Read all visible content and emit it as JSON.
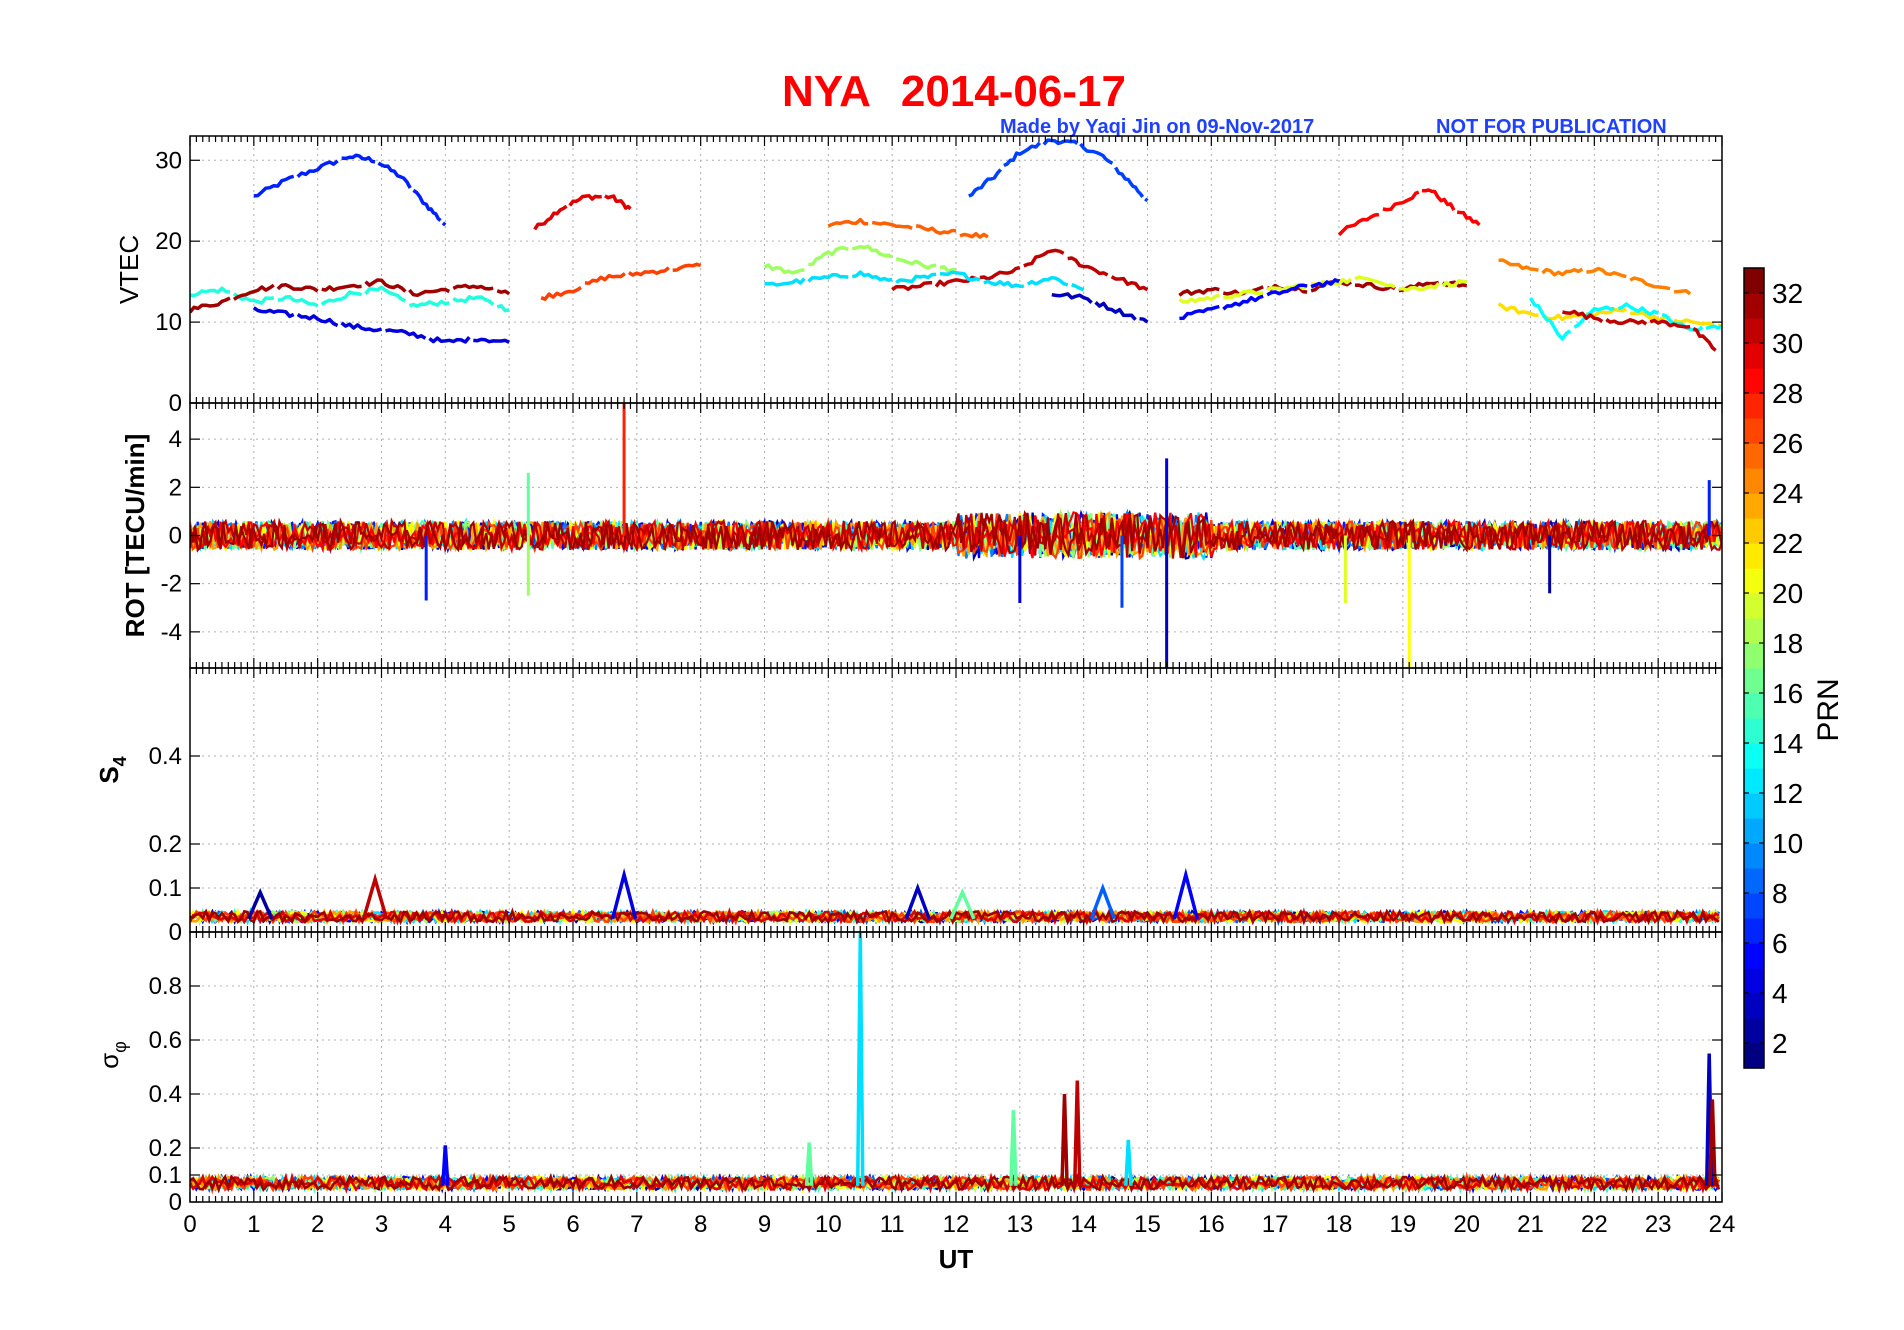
{
  "header": {
    "station": "NYA",
    "date": "2014-06-17",
    "credit": "Made by Yaqi Jin on 09-Nov-2017",
    "notice": "NOT FOR PUBLICATION"
  },
  "colors": {
    "title": "#ff0000",
    "credit": "#2040ff",
    "colormap": "jet"
  },
  "chart_data": [
    {
      "type": "line",
      "panel": "vtec",
      "ylabel": "VTEC",
      "ylim": [
        0,
        33
      ],
      "yticks": [
        0,
        10,
        20,
        30
      ],
      "xlim": [
        0,
        24
      ],
      "grid": true,
      "series": [
        {
          "prn": 6,
          "x": [
            1.0,
            1.5,
            2.0,
            2.5,
            2.9,
            3.3,
            3.7,
            4.0
          ],
          "y": [
            25.5,
            27.5,
            29.0,
            30.5,
            30.0,
            28.0,
            24.5,
            22.0
          ]
        },
        {
          "prn": 30,
          "x": [
            5.4,
            5.8,
            6.2,
            6.6,
            6.9
          ],
          "y": [
            21.5,
            24.0,
            25.5,
            25.5,
            24.0
          ]
        },
        {
          "prn": 7,
          "x": [
            12.2,
            12.6,
            13.0,
            13.5,
            13.9,
            14.3,
            14.7,
            15.0
          ],
          "y": [
            25.5,
            28.0,
            31.0,
            32.5,
            32.0,
            30.5,
            27.5,
            25.0
          ]
        },
        {
          "prn": 29,
          "x": [
            18.0,
            18.5,
            19.0,
            19.4,
            19.8,
            20.2
          ],
          "y": [
            21.0,
            23.0,
            25.0,
            26.5,
            24.0,
            22.0
          ]
        },
        {
          "prn": 26,
          "x": [
            10.0,
            10.5,
            11.0,
            11.5,
            12.0,
            12.5
          ],
          "y": [
            22.0,
            22.5,
            22.0,
            21.5,
            21.0,
            20.5
          ]
        },
        {
          "prn": 25,
          "x": [
            20.5,
            21.0,
            21.5,
            22.0,
            22.5,
            23.0,
            23.5
          ],
          "y": [
            17.5,
            16.5,
            16.0,
            16.5,
            15.5,
            14.5,
            13.5
          ]
        },
        {
          "prn": 14,
          "x": [
            0.0,
            0.5,
            1.0,
            1.5,
            2.0,
            2.5,
            3.0,
            3.5,
            4.0,
            4.5,
            5.0
          ],
          "y": [
            13.5,
            14.0,
            12.5,
            13.0,
            12.0,
            13.5,
            14.0,
            12.0,
            12.5,
            13.0,
            11.5
          ]
        },
        {
          "prn": 32,
          "x": [
            0.0,
            0.5,
            1.0,
            1.5,
            2.0,
            2.5,
            3.0,
            3.5,
            4.0,
            4.5,
            5.0
          ],
          "y": [
            11.5,
            12.5,
            14.0,
            14.5,
            14.0,
            14.5,
            15.0,
            13.5,
            14.0,
            14.5,
            13.5
          ]
        },
        {
          "prn": 4,
          "x": [
            1.0,
            1.5,
            2.0,
            2.5,
            3.0,
            3.5,
            4.0,
            4.5,
            5.0
          ],
          "y": [
            11.5,
            11.0,
            10.5,
            9.5,
            9.0,
            8.5,
            7.5,
            8.0,
            7.5
          ]
        },
        {
          "prn": 27,
          "x": [
            5.5,
            6.0,
            6.5,
            7.0,
            7.5,
            8.0
          ],
          "y": [
            13.0,
            14.0,
            15.5,
            16.0,
            16.5,
            17.0
          ]
        },
        {
          "prn": 18,
          "x": [
            9.0,
            9.5,
            10.0,
            10.5,
            11.0,
            11.5,
            12.0
          ],
          "y": [
            17.0,
            16.0,
            18.5,
            19.5,
            18.0,
            17.0,
            16.5
          ]
        },
        {
          "prn": 31,
          "x": [
            11.0,
            11.5,
            12.0,
            12.5,
            13.0,
            13.5,
            14.0,
            14.5,
            15.0
          ],
          "y": [
            14.0,
            14.5,
            15.0,
            15.5,
            16.5,
            19.0,
            17.0,
            15.5,
            14.0
          ]
        },
        {
          "prn": 12,
          "x": [
            9.0,
            9.5,
            10.0,
            10.5,
            11.0,
            11.5,
            12.0,
            12.5,
            13.0,
            13.5,
            14.0
          ],
          "y": [
            14.5,
            15.0,
            15.5,
            16.0,
            15.0,
            15.5,
            16.0,
            15.0,
            14.5,
            15.5,
            14.0
          ]
        },
        {
          "prn": 3,
          "x": [
            13.5,
            14.0,
            14.5,
            15.0
          ],
          "y": [
            13.5,
            13.0,
            11.5,
            10.0
          ]
        },
        {
          "prn": 32,
          "x": [
            15.5,
            16.0,
            16.5,
            17.0,
            17.5,
            18.0,
            18.5,
            19.0,
            19.5,
            20.0
          ],
          "y": [
            13.5,
            14.0,
            13.5,
            14.5,
            14.0,
            15.0,
            14.5,
            14.0,
            15.0,
            14.5
          ]
        },
        {
          "prn": 20,
          "x": [
            15.5,
            16.0,
            16.5,
            17.0,
            17.5,
            18.0,
            18.5,
            19.0,
            19.5,
            20.0
          ],
          "y": [
            12.5,
            13.0,
            13.5,
            14.0,
            14.5,
            15.0,
            15.5,
            14.0,
            14.5,
            15.0
          ]
        },
        {
          "prn": 5,
          "x": [
            15.5,
            16.0,
            16.5,
            17.0,
            17.5,
            18.0
          ],
          "y": [
            10.5,
            11.5,
            12.5,
            13.5,
            14.5,
            15.0
          ]
        },
        {
          "prn": 22,
          "x": [
            20.5,
            21.0,
            21.5,
            22.0,
            22.5,
            23.0,
            23.5,
            24.0
          ],
          "y": [
            12.0,
            11.0,
            10.5,
            11.0,
            11.5,
            10.5,
            10.0,
            9.5
          ]
        },
        {
          "prn": 13,
          "x": [
            21.0,
            21.5,
            22.0,
            22.5,
            23.0,
            23.5,
            24.0
          ],
          "y": [
            13.0,
            8.0,
            11.5,
            12.0,
            11.0,
            9.0,
            9.5
          ]
        },
        {
          "prn": 31,
          "x": [
            21.5,
            22.0,
            22.5,
            23.0,
            23.5,
            23.9
          ],
          "y": [
            11.5,
            10.5,
            10.0,
            10.0,
            9.5,
            6.5
          ]
        }
      ]
    },
    {
      "type": "line",
      "panel": "rot",
      "ylabel": "ROT [TECU/min]",
      "ylim": [
        -5.5,
        5.5
      ],
      "yticks": [
        -4,
        -2,
        0,
        2,
        4
      ],
      "xlim": [
        0,
        24
      ],
      "grid": true,
      "spikes": [
        {
          "prn": 28,
          "x": 6.8,
          "y": 5.5
        },
        {
          "prn": 3,
          "x": 15.3,
          "y": -5.5
        },
        {
          "prn": 4,
          "x": 15.3,
          "y": 3.2
        },
        {
          "prn": 21,
          "x": 19.1,
          "y": -5.5
        },
        {
          "prn": 6,
          "x": 3.7,
          "y": -2.7
        },
        {
          "prn": 16,
          "x": 5.3,
          "y": 2.6
        },
        {
          "prn": 18,
          "x": 5.3,
          "y": -2.5
        },
        {
          "prn": 20,
          "x": 18.1,
          "y": -2.8
        },
        {
          "prn": 4,
          "x": 13.0,
          "y": -2.8
        },
        {
          "prn": 7,
          "x": 14.6,
          "y": -3.0
        },
        {
          "prn": 2,
          "x": 21.3,
          "y": -2.4
        },
        {
          "prn": 6,
          "x": 23.8,
          "y": 2.3
        }
      ]
    },
    {
      "type": "line",
      "panel": "s4",
      "ylabel": "S4",
      "ylim": [
        0,
        0.6
      ],
      "yticks": [
        0,
        0.1,
        0.2,
        0.4
      ],
      "xlim": [
        0,
        24
      ],
      "grid": true,
      "baseline": 0.03,
      "peaks": [
        {
          "prn": 31,
          "x": 2.9,
          "y": 0.12
        },
        {
          "prn": 2,
          "x": 1.1,
          "y": 0.09
        },
        {
          "prn": 4,
          "x": 6.8,
          "y": 0.13
        },
        {
          "prn": 3,
          "x": 11.4,
          "y": 0.1
        },
        {
          "prn": 5,
          "x": 15.6,
          "y": 0.13
        },
        {
          "prn": 8,
          "x": 14.3,
          "y": 0.1
        },
        {
          "prn": 16,
          "x": 12.1,
          "y": 0.09
        }
      ]
    },
    {
      "type": "line",
      "panel": "sigma_phi",
      "ylabel": "σφ",
      "xlabel": "UT",
      "ylim": [
        0,
        1.0
      ],
      "yticks": [
        0,
        0.1,
        0.2,
        0.4,
        0.6,
        0.8
      ],
      "xlim": [
        0,
        24
      ],
      "xticks": [
        0,
        1,
        2,
        3,
        4,
        5,
        6,
        7,
        8,
        9,
        10,
        11,
        12,
        13,
        14,
        15,
        16,
        17,
        18,
        19,
        20,
        21,
        22,
        23,
        24
      ],
      "grid": true,
      "baseline": 0.06,
      "peaks": [
        {
          "prn": 12,
          "x": 10.5,
          "y": 1.0
        },
        {
          "prn": 31,
          "x": 13.9,
          "y": 0.45
        },
        {
          "prn": 32,
          "x": 13.7,
          "y": 0.4
        },
        {
          "prn": 16,
          "x": 12.9,
          "y": 0.34
        },
        {
          "prn": 3,
          "x": 23.8,
          "y": 0.55
        },
        {
          "prn": 32,
          "x": 23.85,
          "y": 0.38
        },
        {
          "prn": 5,
          "x": 4.0,
          "y": 0.21
        },
        {
          "prn": 12,
          "x": 14.7,
          "y": 0.23
        },
        {
          "prn": 16,
          "x": 9.7,
          "y": 0.22
        }
      ]
    }
  ],
  "colorbar": {
    "label": "PRN",
    "range": [
      1,
      33
    ],
    "ticks": [
      2,
      4,
      6,
      8,
      10,
      12,
      14,
      16,
      18,
      20,
      22,
      24,
      26,
      28,
      30,
      32
    ]
  }
}
